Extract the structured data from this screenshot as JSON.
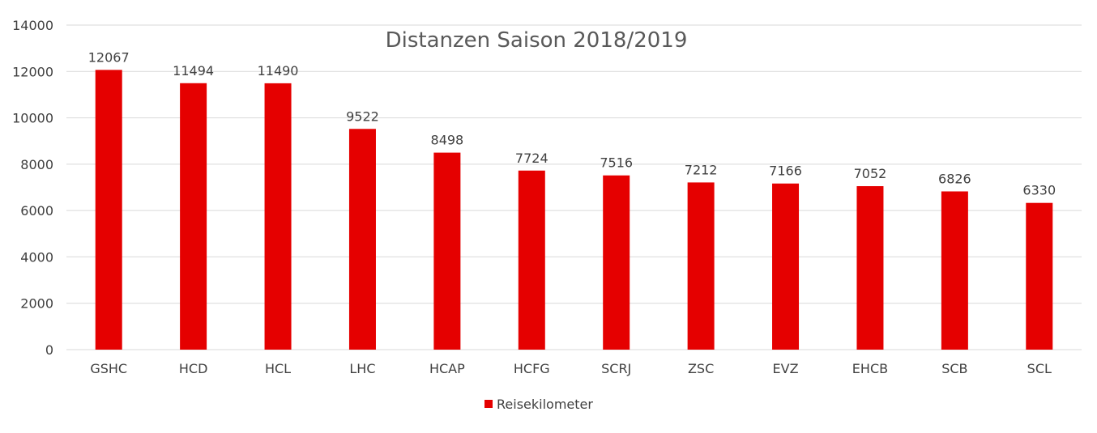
{
  "chart_data": {
    "type": "bar",
    "title": "Distanzen Saison 2018/2019",
    "xlabel": "",
    "ylabel": "",
    "categories": [
      "GSHC",
      "HCD",
      "HCL",
      "LHC",
      "HCAP",
      "HCFG",
      "SCRJ",
      "ZSC",
      "EVZ",
      "EHCB",
      "SCB",
      "SCL"
    ],
    "series": [
      {
        "name": "Reisekilometer",
        "values": [
          12067,
          11494,
          11490,
          9522,
          8498,
          7724,
          7516,
          7212,
          7166,
          7052,
          6826,
          6330
        ],
        "color": "#e50000"
      }
    ],
    "ylim": [
      0,
      14000
    ],
    "yticks": [
      0,
      2000,
      4000,
      6000,
      8000,
      10000,
      12000,
      14000
    ],
    "grid": true,
    "data_labels": true,
    "legend_position": "bottom"
  }
}
